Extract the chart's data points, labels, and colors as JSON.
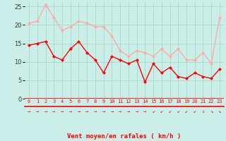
{
  "hours": [
    0,
    1,
    2,
    3,
    4,
    5,
    6,
    7,
    8,
    9,
    10,
    11,
    12,
    13,
    14,
    15,
    16,
    17,
    18,
    19,
    20,
    21,
    22,
    23
  ],
  "avg_wind": [
    14.5,
    15,
    15.5,
    11.5,
    10.5,
    13.5,
    15.5,
    12.5,
    10.5,
    7,
    11.5,
    10.5,
    9.5,
    10.5,
    4.5,
    9.5,
    7,
    8.5,
    6,
    5.5,
    7,
    6,
    5.5,
    8
  ],
  "gust_wind": [
    20.5,
    21,
    25.5,
    22,
    18.5,
    19.5,
    21,
    20.5,
    19.5,
    19.5,
    17,
    13,
    11.5,
    13,
    12.5,
    11.5,
    13.5,
    11.5,
    13.5,
    10.5,
    10.5,
    12.5,
    9.5,
    22
  ],
  "avg_color": "#ff0000",
  "gust_color": "#ffaaaa",
  "bg_color": "#cceee8",
  "grid_color": "#aaddcc",
  "xlabel": "Vent moyen/en rafales ( km/h )",
  "ylim": [
    0,
    26
  ],
  "yticks": [
    0,
    5,
    10,
    15,
    20,
    25
  ],
  "wind_arrows": [
    "→",
    "→",
    "→",
    "→",
    "→",
    "→",
    "→",
    "→",
    "→",
    "→",
    "→",
    "→",
    "→",
    "→",
    "→",
    "↙",
    "↙",
    "↙",
    "↙",
    "↙",
    "↙",
    "↓",
    "↘",
    "↘"
  ],
  "markersize": 2.5,
  "linewidth": 1.0
}
